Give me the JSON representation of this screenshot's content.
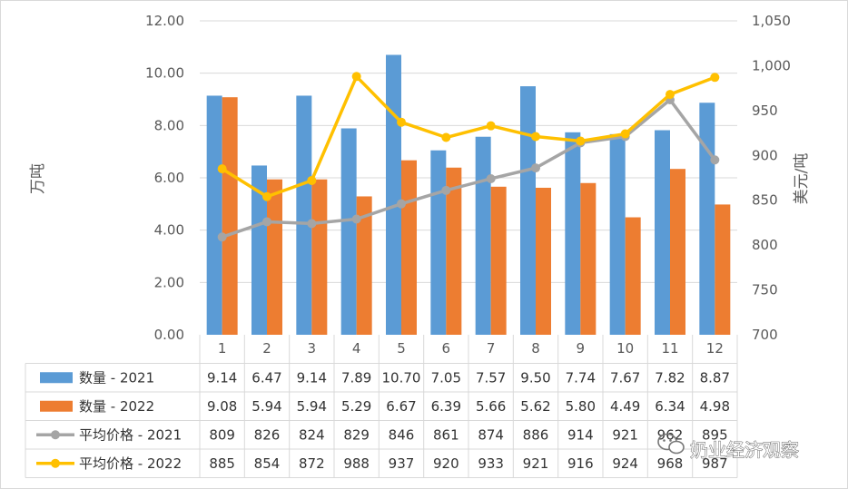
{
  "chart_data": {
    "type": "bar",
    "categories": [
      "1",
      "2",
      "3",
      "4",
      "5",
      "6",
      "7",
      "8",
      "9",
      "10",
      "11",
      "12"
    ],
    "series": [
      {
        "name": "数量 - 2021",
        "type": "bar",
        "axis": "left",
        "color": "#5B9BD5",
        "values": [
          9.14,
          6.47,
          9.14,
          7.89,
          10.7,
          7.05,
          7.57,
          9.5,
          7.74,
          7.67,
          7.82,
          8.87
        ],
        "table_values": [
          "9.14",
          "6.47",
          "9.14",
          "7.89",
          "10.70",
          "7.05",
          "7.57",
          "9.50",
          "7.74",
          "7.67",
          "7.82",
          "8.87"
        ]
      },
      {
        "name": "数量 - 2022",
        "type": "bar",
        "axis": "left",
        "color": "#ED7D31",
        "values": [
          9.08,
          5.94,
          5.94,
          5.29,
          6.67,
          6.39,
          5.66,
          5.62,
          5.8,
          4.49,
          6.34,
          4.98
        ],
        "table_values": [
          "9.08",
          "5.94",
          "5.94",
          "5.29",
          "6.67",
          "6.39",
          "5.66",
          "5.62",
          "5.80",
          "4.49",
          "6.34",
          "4.98"
        ]
      },
      {
        "name": "平均价格 - 2021",
        "type": "line",
        "axis": "right",
        "color": "#A5A5A5",
        "values": [
          809,
          826,
          824,
          829,
          846,
          861,
          874,
          886,
          914,
          921,
          962,
          895
        ],
        "table_values": [
          "809",
          "826",
          "824",
          "829",
          "846",
          "861",
          "874",
          "886",
          "914",
          "921",
          "962",
          "895"
        ]
      },
      {
        "name": "平均价格 - 2022",
        "type": "line",
        "axis": "right",
        "color": "#FFC000",
        "values": [
          885,
          854,
          872,
          988,
          937,
          920,
          933,
          921,
          916,
          924,
          968,
          987
        ],
        "table_values": [
          "885",
          "854",
          "872",
          "988",
          "937",
          "920",
          "933",
          "921",
          "916",
          "924",
          "968",
          "987"
        ]
      }
    ],
    "ylabel": "万吨",
    "y2label": "美元/吨",
    "ylim": [
      0,
      12
    ],
    "yticks": [
      "0.00",
      "2.00",
      "4.00",
      "6.00",
      "8.00",
      "10.00",
      "12.00"
    ],
    "y2lim": [
      700,
      1050
    ],
    "y2ticks": [
      "700",
      "750",
      "800",
      "850",
      "900",
      "950",
      "1,000",
      "1,050"
    ],
    "grid": true,
    "legend": "data-table"
  },
  "watermark": "奶业经济观察"
}
